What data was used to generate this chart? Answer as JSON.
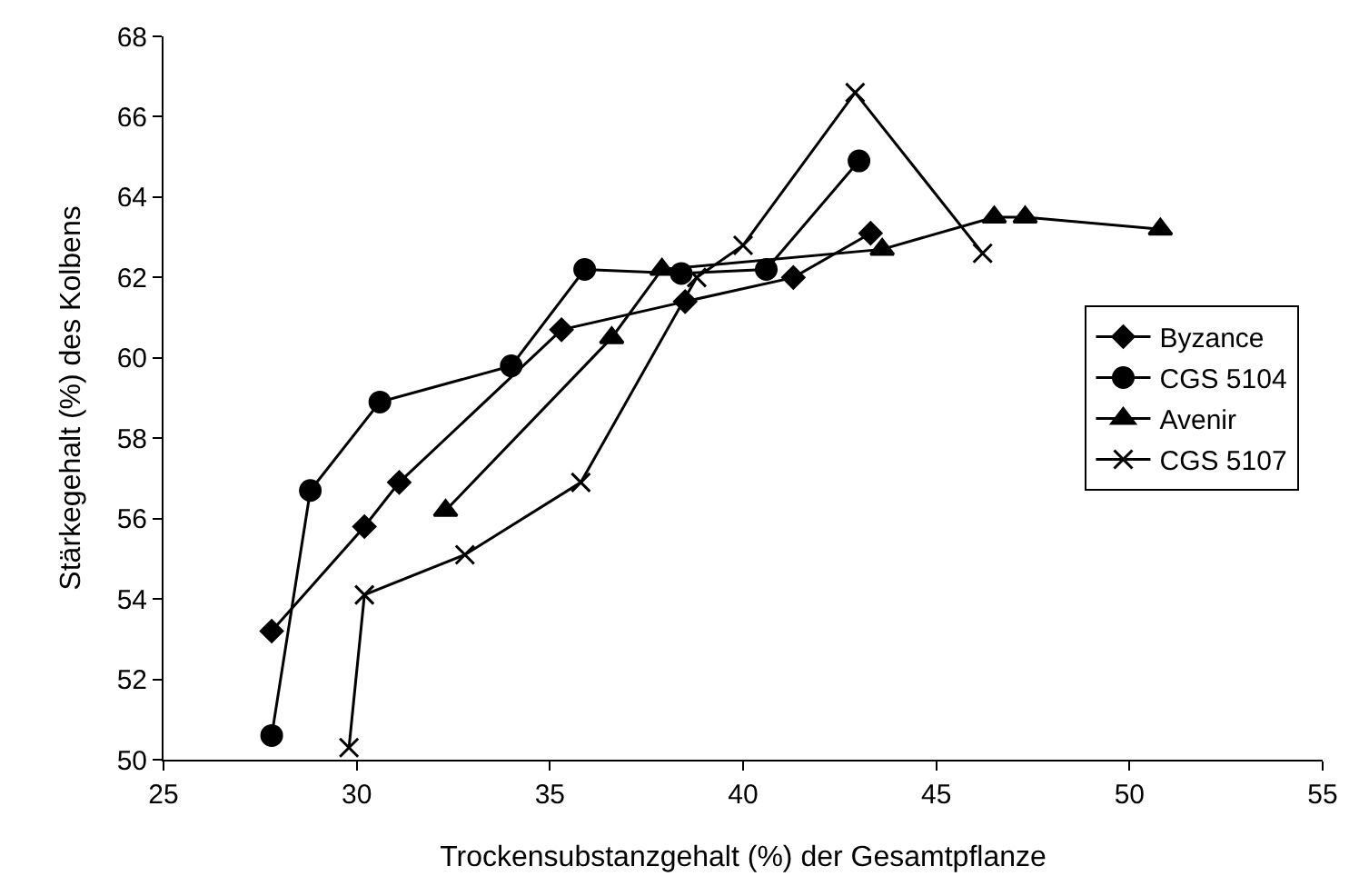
{
  "chart_data": {
    "type": "line",
    "xlabel": "Trockensubstanzgehalt (%) der Gesamtpflanze",
    "ylabel": "Stärkegehalt (%) des Kolbens",
    "xlim": [
      25,
      55
    ],
    "xticks": [
      25,
      30,
      35,
      40,
      45,
      50,
      55
    ],
    "ylim": [
      50,
      68
    ],
    "yticks": [
      50,
      52,
      54,
      56,
      58,
      60,
      62,
      64,
      66,
      68
    ],
    "legend": "right",
    "line_style": "solid",
    "series": [
      {
        "name": "Byzance",
        "color": "#000000",
        "marker": "diamond",
        "x": [
          27.8,
          30.2,
          31.1,
          35.3,
          38.5,
          41.3,
          43.3
        ],
        "values": [
          53.2,
          55.8,
          56.9,
          60.7,
          61.4,
          62.0,
          63.1
        ]
      },
      {
        "name": "CGS 5104",
        "color": "#000000",
        "marker": "circle",
        "x": [
          27.8,
          28.8,
          30.6,
          34.0,
          35.9,
          38.4,
          40.6,
          43.0
        ],
        "values": [
          50.6,
          56.7,
          58.9,
          59.8,
          62.2,
          62.1,
          62.2,
          64.9
        ]
      },
      {
        "name": "Avenir",
        "color": "#000000",
        "marker": "triangle",
        "x": [
          32.3,
          36.6,
          37.9,
          43.6,
          46.5,
          47.3,
          50.8
        ],
        "values": [
          56.2,
          60.5,
          62.2,
          62.7,
          63.5,
          63.5,
          63.2
        ]
      },
      {
        "name": "CGS 5107",
        "color": "#000000",
        "marker": "cross",
        "x": [
          29.8,
          30.2,
          32.8,
          35.8,
          38.8,
          40.0,
          42.9,
          46.2
        ],
        "values": [
          50.3,
          54.1,
          55.1,
          56.9,
          62.0,
          62.8,
          66.6,
          62.6
        ]
      }
    ]
  }
}
